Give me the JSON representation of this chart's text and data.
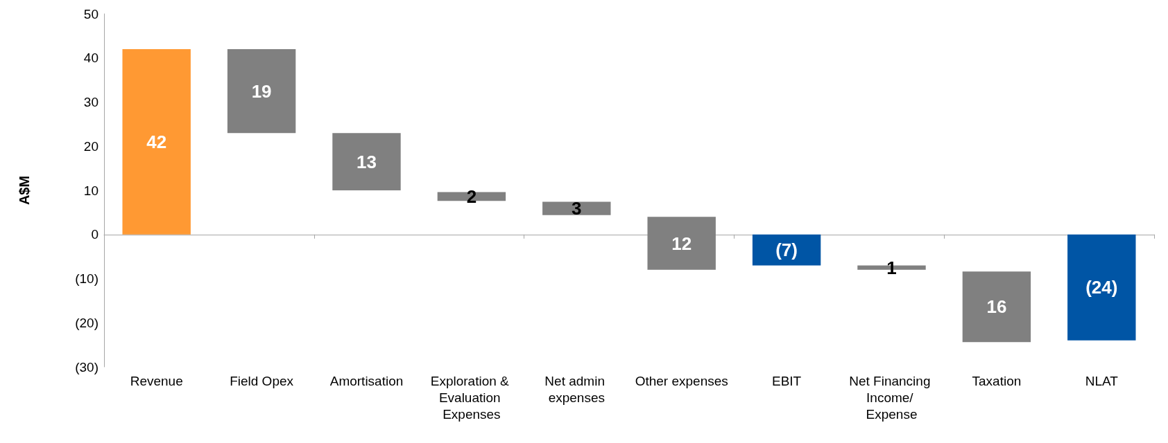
{
  "chart_data": {
    "type": "bar",
    "ylabel": "A$M",
    "categories": [
      "Revenue",
      "Field Opex",
      "Amortisation",
      "Exploration & Evaluation Expenses",
      "Net admin expenses",
      "Other expenses",
      "EBIT",
      "Net Financing Income/ Expense",
      "Taxation",
      "NLAT"
    ],
    "values": [
      42,
      -19,
      -13,
      -2,
      -3,
      -12,
      -7,
      -1,
      -16,
      -24
    ],
    "base": [
      0,
      42,
      23,
      9.6,
      7.4,
      4,
      0,
      -7,
      -8.4,
      0
    ],
    "colors": [
      "#ff9933",
      "#808080",
      "#808080",
      "#808080",
      "#808080",
      "#808080",
      "#0055a5",
      "#808080",
      "#808080",
      "#0055a5"
    ],
    "value_labels": [
      "42",
      "19",
      "13",
      "2",
      "3",
      "12",
      "(7)",
      "1",
      "16",
      "(24)"
    ],
    "ylim": [
      -30,
      50
    ],
    "yticks": [
      {
        "value": -30,
        "label": "(30)"
      },
      {
        "value": -20,
        "label": "(20)"
      },
      {
        "value": -10,
        "label": "(10)"
      },
      0,
      10,
      20,
      30,
      40,
      50
    ]
  }
}
